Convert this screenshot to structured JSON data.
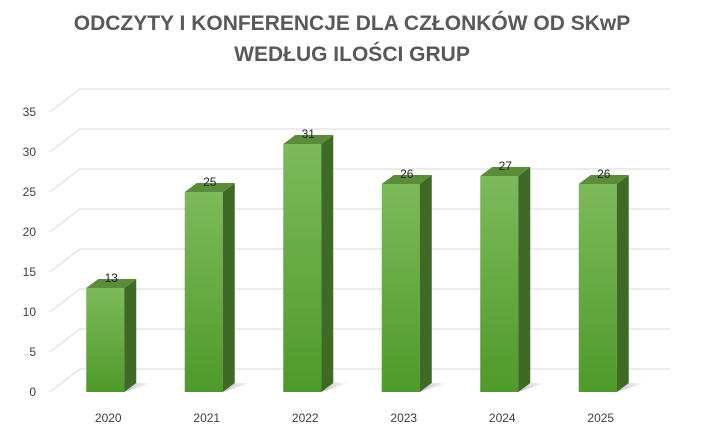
{
  "chart_data": {
    "type": "bar",
    "title_line1": "ODCZYTY I KONFERENCJE DLA CZŁONKÓW OD SKwP",
    "title_line2": "WEDŁUG ILOŚCI GRUP",
    "categories": [
      "2020",
      "2021",
      "2022",
      "2023",
      "2024",
      "2025"
    ],
    "values": [
      13,
      25,
      31,
      26,
      27,
      26
    ],
    "ylim": [
      0,
      35
    ],
    "yticks": [
      0,
      5,
      10,
      15,
      20,
      25,
      30,
      35
    ],
    "grid": true,
    "legend": "none",
    "style": "3d-column",
    "colors": {
      "bar_top": "#7dba5a",
      "bar_bottom": "#4e9a2a",
      "bar_side": "#3e6a26",
      "bar_cap": "#5c8c3a",
      "grid": "#d9d9d9"
    }
  }
}
